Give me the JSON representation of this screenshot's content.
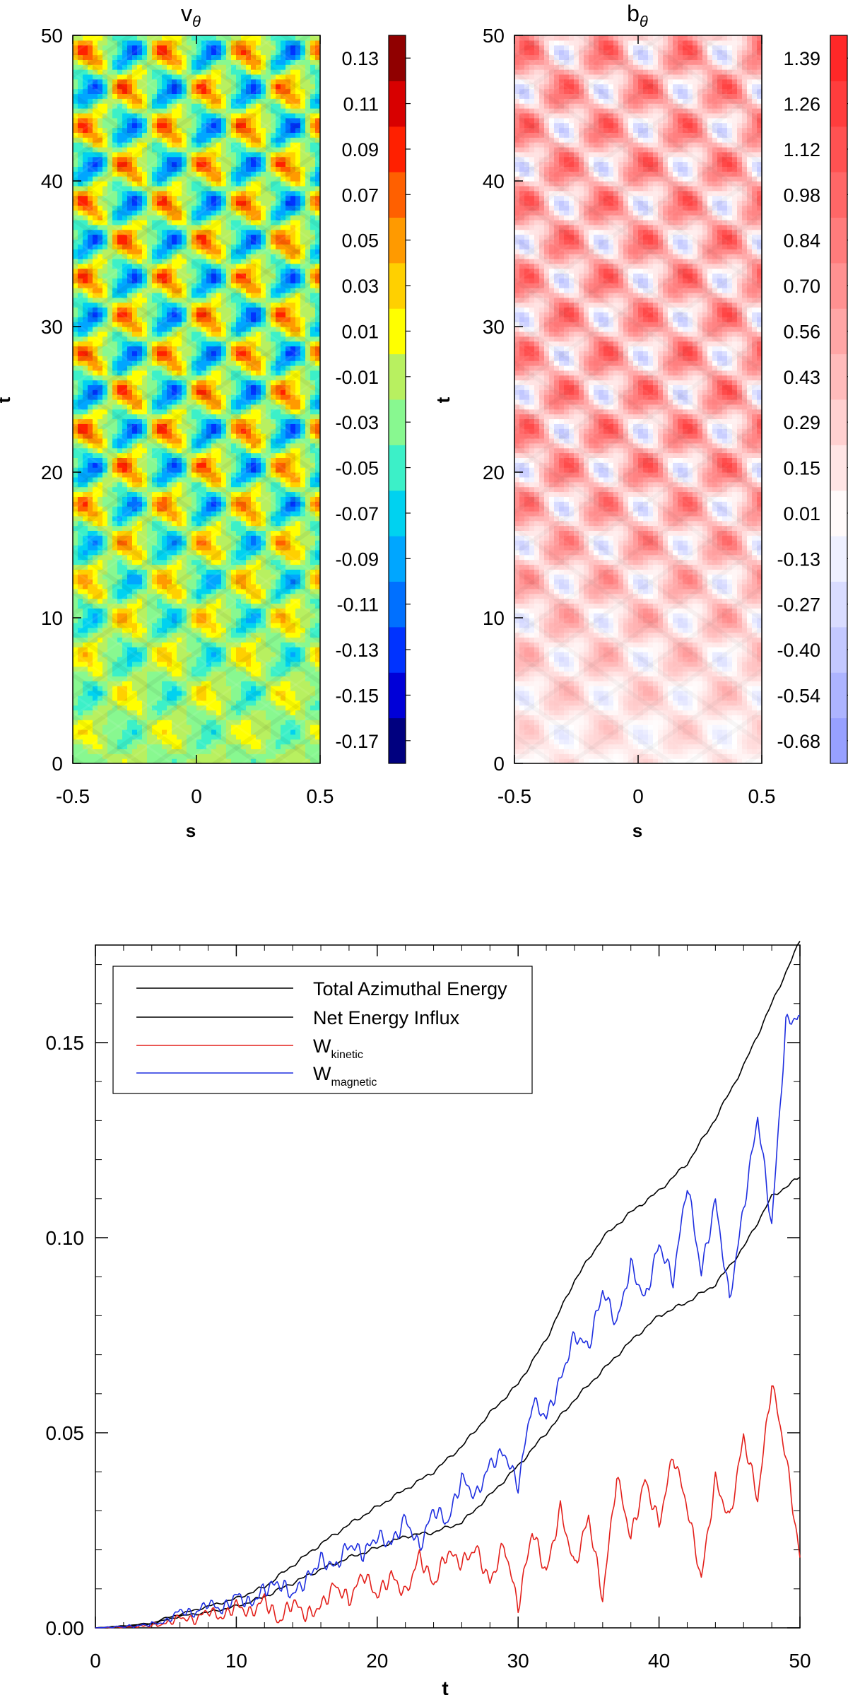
{
  "chart_data": [
    {
      "id": "vtheta",
      "type": "heatmap",
      "title_main": "v",
      "title_sub": "θ",
      "xlabel": "s",
      "ylabel": "t",
      "xlim": [
        -0.5,
        0.5
      ],
      "ylim": [
        0,
        50
      ],
      "xticks": [
        -0.5,
        0,
        0.5
      ],
      "yticks": [
        0,
        10,
        20,
        30,
        40,
        50
      ],
      "xtick_labels": [
        "-0.5",
        "0",
        "0.5"
      ],
      "ytick_labels": [
        "0",
        "10",
        "20",
        "30",
        "40",
        "50"
      ],
      "colorbar": {
        "labels": [
          "-0.17",
          "-0.15",
          "-0.13",
          "-0.11",
          "-0.09",
          "-0.07",
          "-0.05",
          "-0.03",
          "-0.01",
          "0.01",
          "0.03",
          "0.05",
          "0.07",
          "0.09",
          "0.11",
          "0.13"
        ],
        "colors": [
          "#00007f",
          "#0000d8",
          "#0033ff",
          "#0070ff",
          "#00a6ff",
          "#00d2f0",
          "#3cf0c8",
          "#88f890",
          "#b8f060",
          "#ffff00",
          "#ffd000",
          "#ff9a00",
          "#ff6000",
          "#ff2000",
          "#d80000",
          "#900000"
        ]
      }
    },
    {
      "id": "btheta",
      "type": "heatmap",
      "title_main": "b",
      "title_sub": "θ",
      "xlabel": "s",
      "ylabel": "t",
      "xlim": [
        -0.5,
        0.5
      ],
      "ylim": [
        0,
        50
      ],
      "xticks": [
        -0.5,
        0,
        0.5
      ],
      "yticks": [
        0,
        10,
        20,
        30,
        40,
        50
      ],
      "xtick_labels": [
        "-0.5",
        "0",
        "0.5"
      ],
      "ytick_labels": [
        "0",
        "10",
        "20",
        "30",
        "40",
        "50"
      ],
      "colorbar": {
        "labels": [
          "-0.68",
          "-0.54",
          "-0.40",
          "-0.27",
          "-0.13",
          "0.01",
          "0.15",
          "0.29",
          "0.43",
          "0.56",
          "0.70",
          "0.84",
          "0.98",
          "1.12",
          "1.26",
          "1.39"
        ],
        "vmin": -0.68,
        "vmax": 1.39,
        "colors": {
          "low": "#8c96ff",
          "mid": "#ffffff",
          "high": "#ff1e1e"
        }
      }
    },
    {
      "id": "energy",
      "type": "line",
      "xlabel": "t",
      "ylabel": "",
      "xlim": [
        0,
        50
      ],
      "ylim": [
        0,
        0.175
      ],
      "xticks": [
        0,
        10,
        20,
        30,
        40,
        50
      ],
      "yticks": [
        0,
        0.05,
        0.1,
        0.15
      ],
      "xtick_labels": [
        "0",
        "10",
        "20",
        "30",
        "40",
        "50"
      ],
      "ytick_labels": [
        "0.00",
        "0.05",
        "0.10",
        "0.15"
      ],
      "series": [
        {
          "name": "Total Azimuthal Energy",
          "legend_main": "Total Azimuthal Energy",
          "legend_sub": "",
          "color": "#000000",
          "x": [
            0,
            2,
            4,
            5,
            6,
            8,
            10,
            12,
            14,
            16,
            18,
            20,
            22,
            24,
            26,
            28,
            30,
            32,
            34,
            36,
            38,
            40,
            42,
            44,
            46,
            48,
            50
          ],
          "y": [
            0,
            0.0005,
            0.0012,
            0.0025,
            0.0035,
            0.0055,
            0.0075,
            0.0105,
            0.016,
            0.0215,
            0.0265,
            0.031,
            0.0355,
            0.04,
            0.0465,
            0.055,
            0.0625,
            0.074,
            0.089,
            0.1,
            0.1065,
            0.112,
            0.119,
            0.1305,
            0.144,
            0.16,
            0.176
          ]
        },
        {
          "name": "Net Energy Influx",
          "legend_main": "Net Energy Influx",
          "legend_sub": "",
          "color": "#000000",
          "x": [
            0,
            2,
            4,
            5,
            6,
            8,
            10,
            12,
            14,
            16,
            18,
            20,
            22,
            24,
            26,
            28,
            30,
            32,
            34,
            36,
            38,
            40,
            42,
            44,
            46,
            48,
            50
          ],
          "y": [
            0,
            0.0004,
            0.001,
            0.002,
            0.003,
            0.004,
            0.0055,
            0.008,
            0.0115,
            0.015,
            0.018,
            0.0205,
            0.0235,
            0.0245,
            0.027,
            0.034,
            0.0415,
            0.05,
            0.0585,
            0.066,
            0.0735,
            0.08,
            0.0835,
            0.088,
            0.0975,
            0.1105,
            0.1155
          ]
        },
        {
          "name": "W kinetic",
          "legend_main": "W",
          "legend_sub": "kinetic",
          "color": "#e3201b",
          "x": [
            0,
            3,
            5,
            6,
            7,
            8,
            9,
            10,
            11,
            12,
            13,
            14,
            15,
            16,
            17,
            18,
            19,
            20,
            21,
            22,
            23,
            24,
            25,
            26,
            27,
            28,
            29,
            30,
            31,
            32,
            33,
            34,
            35,
            36,
            37,
            38,
            39,
            40,
            41,
            42,
            43,
            44,
            45,
            46,
            47,
            48,
            49,
            50
          ],
          "y": [
            0,
            0.0003,
            0.001,
            0.0028,
            0.0018,
            0.0045,
            0.0025,
            0.006,
            0.0035,
            0.0075,
            0.0015,
            0.0068,
            0.003,
            0.0055,
            0.011,
            0.007,
            0.014,
            0.0082,
            0.0135,
            0.0085,
            0.0185,
            0.011,
            0.0195,
            0.0165,
            0.0205,
            0.0115,
            0.0215,
            0.0055,
            0.025,
            0.014,
            0.0305,
            0.0155,
            0.0285,
            0.0075,
            0.039,
            0.023,
            0.038,
            0.0265,
            0.0445,
            0.031,
            0.0125,
            0.038,
            0.0275,
            0.049,
            0.033,
            0.063,
            0.044,
            0.018
          ]
        },
        {
          "name": "W magnetic",
          "legend_main": "W",
          "legend_sub": "magnetic",
          "color": "#1f2fe0",
          "x": [
            0,
            3,
            5,
            6,
            7,
            8,
            9,
            10,
            11,
            12,
            13,
            14,
            15,
            16,
            17,
            18,
            19,
            20,
            21,
            22,
            23,
            24,
            25,
            26,
            27,
            28,
            29,
            30,
            31,
            32,
            33,
            34,
            35,
            36,
            37,
            38,
            39,
            40,
            41,
            42,
            43,
            44,
            45,
            46,
            47,
            48,
            49,
            50
          ],
          "y": [
            0,
            0.0005,
            0.0015,
            0.0045,
            0.0035,
            0.0065,
            0.0045,
            0.0085,
            0.006,
            0.01,
            0.0115,
            0.0085,
            0.0125,
            0.0175,
            0.0155,
            0.0215,
            0.019,
            0.0235,
            0.0215,
            0.028,
            0.0205,
            0.0305,
            0.027,
            0.0385,
            0.0335,
            0.042,
            0.045,
            0.0365,
            0.058,
            0.054,
            0.0635,
            0.075,
            0.072,
            0.0865,
            0.078,
            0.093,
            0.084,
            0.0985,
            0.089,
            0.114,
            0.091,
            0.1095,
            0.084,
            0.1075,
            0.131,
            0.103,
            0.155,
            0.157
          ]
        }
      ]
    }
  ]
}
